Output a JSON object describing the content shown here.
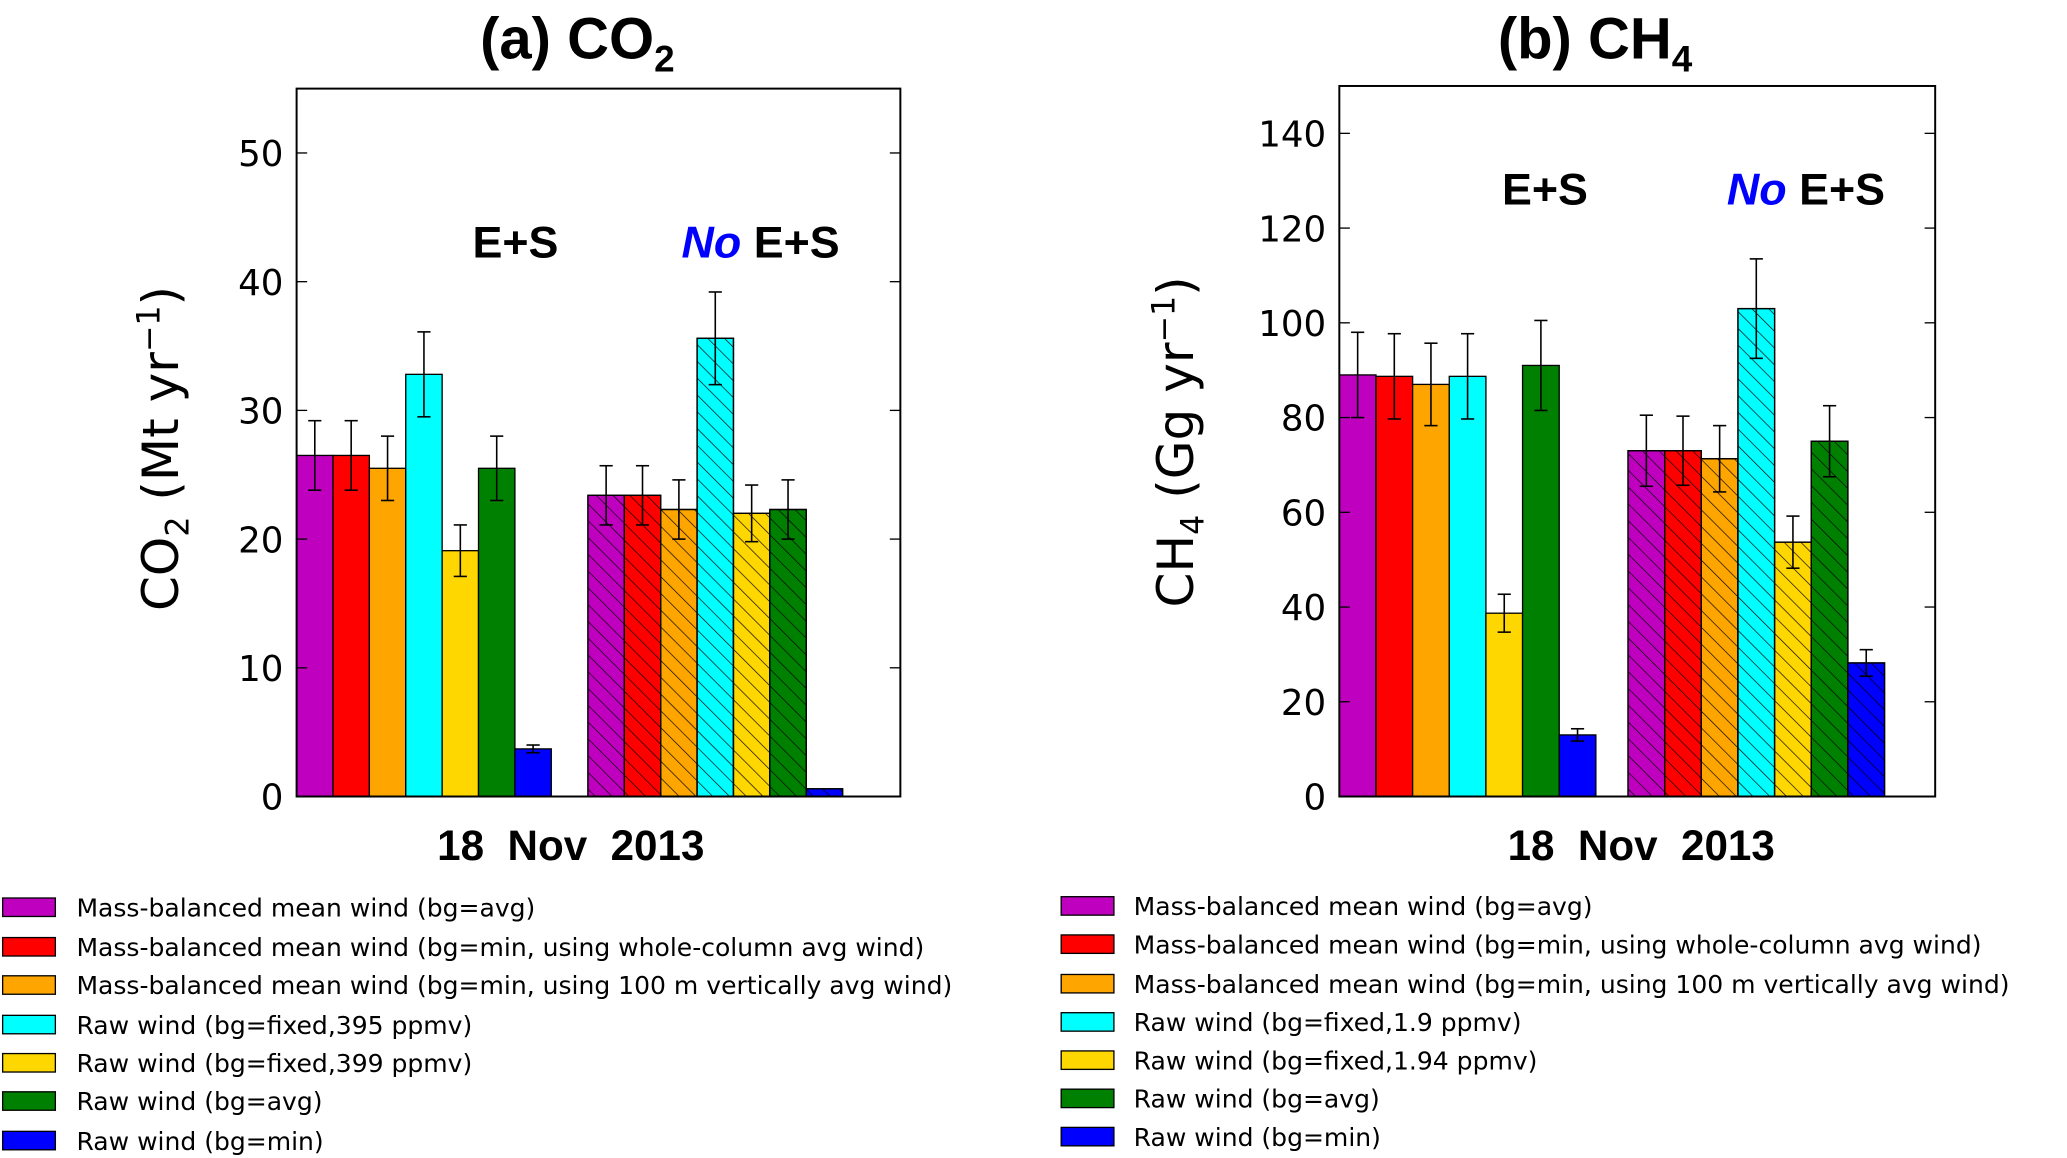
{
  "chart_data": [
    {
      "type": "bar",
      "title": "(a) CO",
      "title_sub": "2",
      "xlabel": "18  Nov  2013",
      "ylabel": "CO",
      "ylabel_sub": "2",
      "ylabel_unit": " (Mt yr",
      "ylabel_sup": "−1",
      "ylabel_end": ")",
      "ylim": [
        0,
        55
      ],
      "yticks": [
        "0",
        "10",
        "20",
        "30",
        "40",
        "50"
      ],
      "grid": false,
      "groups": [
        {
          "label": "E+S",
          "label_prefix": "",
          "hatched": false
        },
        {
          "label": " E+S",
          "label_prefix": "No",
          "hatched": true
        }
      ],
      "series": [
        {
          "name": "Mass-balanced mean wind (bg=avg)",
          "color": "#BF00BF",
          "values": [
            26.5,
            23.4
          ],
          "errors": [
            2.7,
            2.3
          ]
        },
        {
          "name": "Mass-balanced mean wind (bg=min, using whole-column avg wind)",
          "color": "#FF0000",
          "values": [
            26.5,
            23.4
          ],
          "errors": [
            2.7,
            2.3
          ]
        },
        {
          "name": "Mass-balanced mean wind (bg=min, using 100 m vertically avg wind)",
          "color": "#FFA500",
          "values": [
            25.5,
            22.3
          ],
          "errors": [
            2.5,
            2.3
          ]
        },
        {
          "name": "Raw wind (bg=fixed,395 ppmv)",
          "color": "#00FFFF",
          "values": [
            32.8,
            35.6
          ],
          "errors": [
            3.3,
            3.6
          ]
        },
        {
          "name": "Raw wind (bg=fixed,399 ppmv)",
          "color": "#FFD700",
          "values": [
            19.1,
            22.0
          ],
          "errors": [
            2.0,
            2.2
          ]
        },
        {
          "name": "Raw wind (bg=avg)",
          "color": "#008000",
          "values": [
            25.5,
            22.3
          ],
          "errors": [
            2.5,
            2.3
          ]
        },
        {
          "name": "Raw wind (bg=min)",
          "color": "#0000FF",
          "values": [
            3.7,
            0.6
          ],
          "errors": [
            0.3,
            0
          ]
        }
      ],
      "legend_placement": "below"
    },
    {
      "type": "bar",
      "title": "(b) CH",
      "title_sub": "4",
      "xlabel": "18  Nov  2013",
      "ylabel": "CH",
      "ylabel_sub": "4",
      "ylabel_unit": " (Gg yr",
      "ylabel_sup": "−1",
      "ylabel_end": ")",
      "ylim": [
        0,
        150
      ],
      "yticks": [
        "0",
        "20",
        "40",
        "60",
        "80",
        "100",
        "120",
        "140"
      ],
      "grid": false,
      "groups": [
        {
          "label": "E+S",
          "label_prefix": "",
          "hatched": false
        },
        {
          "label": " E+S",
          "label_prefix": "No",
          "hatched": true
        }
      ],
      "series": [
        {
          "name": "Mass-balanced mean wind (bg=avg)",
          "color": "#BF00BF",
          "values": [
            89.0,
            73.0
          ],
          "errors": [
            9.0,
            7.5
          ]
        },
        {
          "name": "Mass-balanced mean wind (bg=min, using whole-column avg wind)",
          "color": "#FF0000",
          "values": [
            88.7,
            73.0
          ],
          "errors": [
            9.0,
            7.3
          ]
        },
        {
          "name": "Mass-balanced mean wind (bg=min, using 100 m vertically avg wind)",
          "color": "#FFA500",
          "values": [
            87.0,
            71.3
          ],
          "errors": [
            8.7,
            7.0
          ]
        },
        {
          "name": "Raw wind (bg=fixed,1.9 ppmv)",
          "color": "#00FFFF",
          "values": [
            88.7,
            103.0
          ],
          "errors": [
            9.0,
            10.5
          ]
        },
        {
          "name": "Raw wind (bg=fixed,1.94 ppmv)",
          "color": "#FFD700",
          "values": [
            38.7,
            53.7
          ],
          "errors": [
            4.0,
            5.5
          ]
        },
        {
          "name": "Raw wind (bg=avg)",
          "color": "#008000",
          "values": [
            91.0,
            75.0
          ],
          "errors": [
            9.5,
            7.5
          ]
        },
        {
          "name": "Raw wind (bg=min)",
          "color": "#0000FF",
          "values": [
            13.0,
            28.2
          ],
          "errors": [
            1.3,
            2.8
          ]
        }
      ],
      "legend_placement": "below"
    }
  ],
  "colors": {
    "no_highlight": "#0000FF"
  }
}
